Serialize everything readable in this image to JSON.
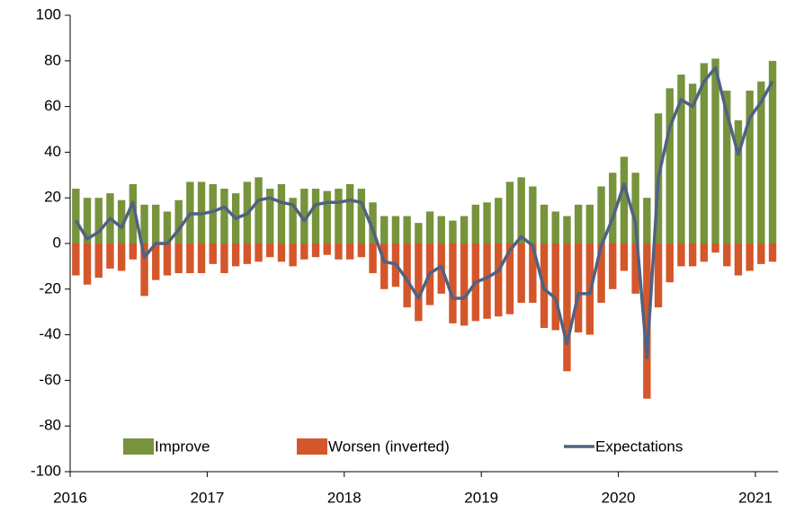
{
  "chart_data": {
    "type": "bar",
    "categories": [
      "2016",
      null,
      null,
      null,
      null,
      null,
      null,
      null,
      null,
      null,
      null,
      null,
      "2017",
      null,
      null,
      null,
      null,
      null,
      null,
      null,
      null,
      null,
      null,
      null,
      "2018",
      null,
      null,
      null,
      null,
      null,
      null,
      null,
      null,
      null,
      null,
      null,
      "2019",
      null,
      null,
      null,
      null,
      null,
      null,
      null,
      null,
      null,
      null,
      null,
      "2020",
      null,
      null,
      null,
      null,
      null,
      null,
      null,
      null,
      null,
      null,
      null,
      "2021",
      null
    ],
    "series": [
      {
        "name": "Improve",
        "type": "bar",
        "color": "#77933c",
        "values": [
          24,
          20,
          20,
          22,
          19,
          26,
          17,
          17,
          14,
          19,
          27,
          27,
          26,
          24,
          22,
          27,
          29,
          24,
          26,
          20,
          24,
          24,
          23,
          24,
          26,
          24,
          18,
          12,
          12,
          12,
          9,
          14,
          12,
          10,
          12,
          17,
          18,
          20,
          27,
          29,
          25,
          17,
          14,
          12,
          17,
          17,
          25,
          31,
          38,
          31,
          20,
          57,
          68,
          74,
          70,
          79,
          81,
          67,
          54,
          67,
          71,
          80
        ]
      },
      {
        "name": "Worsen (inverted)",
        "type": "bar",
        "color": "#d4562b",
        "values": [
          -14,
          -18,
          -15,
          -11,
          -12,
          -7,
          -23,
          -16,
          -14,
          -13,
          -13,
          -13,
          -9,
          -13,
          -10,
          -9,
          -8,
          -6,
          -8,
          -10,
          -7,
          -6,
          -5,
          -7,
          -7,
          -6,
          -13,
          -20,
          -19,
          -28,
          -34,
          -27,
          -22,
          -35,
          -36,
          -34,
          -33,
          -32,
          -31,
          -26,
          -26,
          -37,
          -38,
          -56,
          -39,
          -40,
          -26,
          -20,
          -12,
          -22,
          -68,
          -28,
          -17,
          -10,
          -10,
          -8,
          -4,
          -10,
          -14,
          -12,
          -9,
          -8
        ]
      },
      {
        "name": "Expectations",
        "type": "line",
        "color": "#4f6283",
        "values": [
          10,
          2,
          5,
          11,
          7,
          18,
          -6,
          0,
          0,
          6,
          13,
          13,
          14,
          16,
          11,
          13,
          19,
          20,
          18,
          17,
          10,
          17,
          18,
          18,
          19,
          18,
          6,
          -8,
          -9,
          -16,
          -24,
          -13,
          -10,
          -24,
          -24,
          -17,
          -15,
          -12,
          -3,
          3,
          -1,
          -20,
          -24,
          -44,
          -22,
          -22,
          -1,
          11,
          26,
          9,
          -50,
          29,
          51,
          63,
          60,
          71,
          77,
          57,
          39,
          55,
          62,
          71
        ]
      }
    ],
    "ylim": [
      -100,
      100
    ],
    "yticks": [
      -100,
      -80,
      -60,
      -40,
      -20,
      0,
      20,
      40,
      60,
      80,
      100
    ],
    "grid": false,
    "legend": "bottom"
  }
}
